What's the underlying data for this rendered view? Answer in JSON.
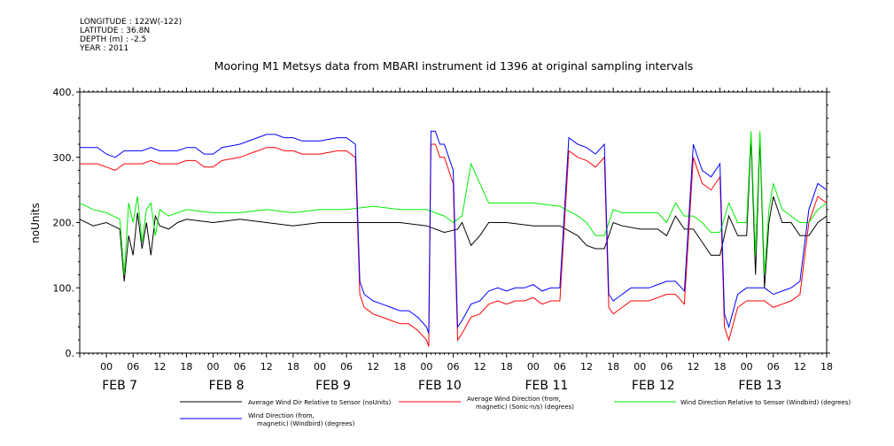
{
  "meta": {
    "longitude": "LONGITUDE : 122W(-122)",
    "latitude": "LATITUDE : 36.8N",
    "depth": "DEPTH (m) : -2.5",
    "year": "YEAR : 2011"
  },
  "chart_data": {
    "type": "line",
    "title": "Mooring M1 Metsys data from MBARI instrument id 1396 at original sampling intervals",
    "ylabel": "noUnits",
    "xlabel": "",
    "ylim": [
      0,
      400
    ],
    "yticks": [
      "0.",
      "100.",
      "200.",
      "300.",
      "400."
    ],
    "ytick_values": [
      0,
      100,
      200,
      300,
      400
    ],
    "xlim_hours": [
      -6,
      162
    ],
    "hour_ticks": [
      "00",
      "06",
      "12",
      "18",
      "00",
      "06",
      "12",
      "18",
      "00",
      "06",
      "12",
      "18",
      "00",
      "06",
      "12",
      "18",
      "00",
      "06",
      "12",
      "18",
      "00",
      "06",
      "12",
      "18",
      "00",
      "06",
      "12",
      "18"
    ],
    "day_labels": [
      "FEB  7",
      "FEB  8",
      "FEB  9",
      "FEB 10",
      "FEB 11",
      "FEB 12",
      "FEB 13"
    ],
    "grid": false,
    "legend_position": "bottom",
    "series": [
      {
        "name": "Average Wind Dir Relative to Sensor (noUnits)",
        "color": "#000000",
        "points": [
          [
            -6,
            205
          ],
          [
            -3,
            195
          ],
          [
            0,
            200
          ],
          [
            3,
            190
          ],
          [
            4,
            110
          ],
          [
            5,
            180
          ],
          [
            6,
            150
          ],
          [
            7,
            215
          ],
          [
            8,
            160
          ],
          [
            9,
            200
          ],
          [
            10,
            150
          ],
          [
            11,
            210
          ],
          [
            12,
            195
          ],
          [
            14,
            190
          ],
          [
            16,
            200
          ],
          [
            18,
            205
          ],
          [
            24,
            200
          ],
          [
            30,
            205
          ],
          [
            36,
            200
          ],
          [
            42,
            195
          ],
          [
            48,
            200
          ],
          [
            54,
            200
          ],
          [
            60,
            200
          ],
          [
            66,
            200
          ],
          [
            72,
            195
          ],
          [
            76,
            185
          ],
          [
            79,
            190
          ],
          [
            80,
            200
          ],
          [
            82,
            165
          ],
          [
            84,
            180
          ],
          [
            86,
            200
          ],
          [
            90,
            200
          ],
          [
            96,
            195
          ],
          [
            102,
            195
          ],
          [
            106,
            180
          ],
          [
            108,
            165
          ],
          [
            110,
            160
          ],
          [
            112,
            160
          ],
          [
            114,
            200
          ],
          [
            116,
            195
          ],
          [
            120,
            190
          ],
          [
            124,
            190
          ],
          [
            126,
            180
          ],
          [
            128,
            210
          ],
          [
            130,
            190
          ],
          [
            132,
            190
          ],
          [
            134,
            170
          ],
          [
            136,
            150
          ],
          [
            138,
            150
          ],
          [
            140,
            210
          ],
          [
            142,
            180
          ],
          [
            144,
            180
          ],
          [
            145,
            330
          ],
          [
            146,
            120
          ],
          [
            147,
            330
          ],
          [
            148,
            100
          ],
          [
            149,
            200
          ],
          [
            150,
            240
          ],
          [
            152,
            200
          ],
          [
            154,
            200
          ],
          [
            156,
            180
          ],
          [
            158,
            180
          ],
          [
            160,
            200
          ],
          [
            162,
            210
          ]
        ]
      },
      {
        "name": "Average Wind Direction (from, magnetic) (Sonic-n/s) (degrees)",
        "color": "#ff0000",
        "points": [
          [
            -6,
            290
          ],
          [
            -2,
            290
          ],
          [
            0,
            285
          ],
          [
            2,
            280
          ],
          [
            4,
            290
          ],
          [
            6,
            290
          ],
          [
            8,
            290
          ],
          [
            10,
            295
          ],
          [
            12,
            290
          ],
          [
            14,
            290
          ],
          [
            16,
            290
          ],
          [
            18,
            295
          ],
          [
            20,
            295
          ],
          [
            22,
            285
          ],
          [
            24,
            285
          ],
          [
            26,
            295
          ],
          [
            30,
            300
          ],
          [
            34,
            310
          ],
          [
            36,
            315
          ],
          [
            38,
            315
          ],
          [
            40,
            310
          ],
          [
            42,
            310
          ],
          [
            44,
            305
          ],
          [
            48,
            305
          ],
          [
            52,
            310
          ],
          [
            54,
            310
          ],
          [
            56,
            300
          ],
          [
            57,
            90
          ],
          [
            58,
            70
          ],
          [
            60,
            60
          ],
          [
            62,
            55
          ],
          [
            64,
            50
          ],
          [
            66,
            45
          ],
          [
            68,
            45
          ],
          [
            70,
            35
          ],
          [
            72,
            20
          ],
          [
            72.5,
            10
          ],
          [
            73,
            320
          ],
          [
            74,
            320
          ],
          [
            75,
            300
          ],
          [
            76,
            300
          ],
          [
            77,
            280
          ],
          [
            78,
            260
          ],
          [
            79,
            20
          ],
          [
            80,
            30
          ],
          [
            82,
            55
          ],
          [
            84,
            60
          ],
          [
            86,
            75
          ],
          [
            88,
            80
          ],
          [
            90,
            75
          ],
          [
            92,
            80
          ],
          [
            94,
            80
          ],
          [
            96,
            85
          ],
          [
            98,
            75
          ],
          [
            100,
            80
          ],
          [
            102,
            80
          ],
          [
            104,
            310
          ],
          [
            106,
            300
          ],
          [
            108,
            295
          ],
          [
            110,
            285
          ],
          [
            112,
            300
          ],
          [
            113,
            70
          ],
          [
            114,
            60
          ],
          [
            116,
            70
          ],
          [
            118,
            80
          ],
          [
            120,
            80
          ],
          [
            122,
            80
          ],
          [
            124,
            85
          ],
          [
            126,
            90
          ],
          [
            128,
            90
          ],
          [
            130,
            75
          ],
          [
            132,
            300
          ],
          [
            134,
            260
          ],
          [
            136,
            250
          ],
          [
            138,
            270
          ],
          [
            139,
            40
          ],
          [
            140,
            20
          ],
          [
            142,
            70
          ],
          [
            144,
            80
          ],
          [
            146,
            80
          ],
          [
            148,
            80
          ],
          [
            150,
            70
          ],
          [
            152,
            75
          ],
          [
            154,
            80
          ],
          [
            156,
            90
          ],
          [
            158,
            200
          ],
          [
            160,
            240
          ],
          [
            162,
            230
          ]
        ]
      },
      {
        "name": "Wind Direction Relative to Sensor (Windbird) (degrees)",
        "color": "#00ee00",
        "points": [
          [
            -6,
            230
          ],
          [
            -3,
            220
          ],
          [
            0,
            215
          ],
          [
            3,
            205
          ],
          [
            4,
            120
          ],
          [
            5,
            230
          ],
          [
            6,
            200
          ],
          [
            7,
            240
          ],
          [
            8,
            170
          ],
          [
            9,
            220
          ],
          [
            10,
            230
          ],
          [
            11,
            180
          ],
          [
            12,
            220
          ],
          [
            14,
            210
          ],
          [
            16,
            215
          ],
          [
            18,
            220
          ],
          [
            24,
            215
          ],
          [
            30,
            215
          ],
          [
            36,
            220
          ],
          [
            42,
            215
          ],
          [
            48,
            220
          ],
          [
            54,
            220
          ],
          [
            60,
            225
          ],
          [
            66,
            220
          ],
          [
            72,
            220
          ],
          [
            76,
            210
          ],
          [
            78,
            200
          ],
          [
            80,
            210
          ],
          [
            82,
            290
          ],
          [
            84,
            260
          ],
          [
            86,
            230
          ],
          [
            90,
            230
          ],
          [
            96,
            230
          ],
          [
            102,
            225
          ],
          [
            106,
            210
          ],
          [
            108,
            200
          ],
          [
            110,
            180
          ],
          [
            112,
            180
          ],
          [
            114,
            220
          ],
          [
            116,
            215
          ],
          [
            120,
            215
          ],
          [
            124,
            215
          ],
          [
            126,
            200
          ],
          [
            128,
            230
          ],
          [
            130,
            210
          ],
          [
            132,
            210
          ],
          [
            134,
            200
          ],
          [
            136,
            185
          ],
          [
            138,
            185
          ],
          [
            140,
            230
          ],
          [
            142,
            200
          ],
          [
            144,
            200
          ],
          [
            145,
            340
          ],
          [
            146,
            150
          ],
          [
            147,
            340
          ],
          [
            148,
            120
          ],
          [
            149,
            220
          ],
          [
            150,
            260
          ],
          [
            152,
            220
          ],
          [
            154,
            210
          ],
          [
            156,
            200
          ],
          [
            158,
            200
          ],
          [
            160,
            220
          ],
          [
            162,
            230
          ]
        ]
      },
      {
        "name": "Wind Direction (from, magnetic) (Windbird) (degrees)",
        "color": "#0000ff",
        "points": [
          [
            -6,
            315
          ],
          [
            -2,
            315
          ],
          [
            0,
            305
          ],
          [
            2,
            300
          ],
          [
            4,
            310
          ],
          [
            6,
            310
          ],
          [
            8,
            310
          ],
          [
            10,
            315
          ],
          [
            12,
            310
          ],
          [
            14,
            310
          ],
          [
            16,
            310
          ],
          [
            18,
            315
          ],
          [
            20,
            315
          ],
          [
            22,
            305
          ],
          [
            24,
            305
          ],
          [
            26,
            315
          ],
          [
            30,
            320
          ],
          [
            34,
            330
          ],
          [
            36,
            335
          ],
          [
            38,
            335
          ],
          [
            40,
            330
          ],
          [
            42,
            330
          ],
          [
            44,
            325
          ],
          [
            48,
            325
          ],
          [
            52,
            330
          ],
          [
            54,
            330
          ],
          [
            56,
            320
          ],
          [
            57,
            110
          ],
          [
            58,
            90
          ],
          [
            60,
            80
          ],
          [
            62,
            75
          ],
          [
            64,
            70
          ],
          [
            66,
            65
          ],
          [
            68,
            65
          ],
          [
            70,
            55
          ],
          [
            72,
            40
          ],
          [
            72.5,
            30
          ],
          [
            73,
            340
          ],
          [
            74,
            340
          ],
          [
            75,
            320
          ],
          [
            76,
            320
          ],
          [
            77,
            300
          ],
          [
            78,
            280
          ],
          [
            79,
            40
          ],
          [
            80,
            50
          ],
          [
            82,
            75
          ],
          [
            84,
            80
          ],
          [
            86,
            95
          ],
          [
            88,
            100
          ],
          [
            90,
            95
          ],
          [
            92,
            100
          ],
          [
            94,
            100
          ],
          [
            96,
            105
          ],
          [
            98,
            95
          ],
          [
            100,
            100
          ],
          [
            102,
            100
          ],
          [
            104,
            330
          ],
          [
            106,
            320
          ],
          [
            108,
            315
          ],
          [
            110,
            305
          ],
          [
            112,
            320
          ],
          [
            113,
            90
          ],
          [
            114,
            80
          ],
          [
            116,
            90
          ],
          [
            118,
            100
          ],
          [
            120,
            100
          ],
          [
            122,
            100
          ],
          [
            124,
            105
          ],
          [
            126,
            110
          ],
          [
            128,
            110
          ],
          [
            130,
            95
          ],
          [
            132,
            320
          ],
          [
            134,
            280
          ],
          [
            136,
            270
          ],
          [
            138,
            290
          ],
          [
            139,
            60
          ],
          [
            140,
            40
          ],
          [
            142,
            90
          ],
          [
            144,
            100
          ],
          [
            146,
            100
          ],
          [
            148,
            100
          ],
          [
            150,
            90
          ],
          [
            152,
            95
          ],
          [
            154,
            100
          ],
          [
            156,
            110
          ],
          [
            158,
            220
          ],
          [
            160,
            260
          ],
          [
            162,
            250
          ]
        ]
      }
    ],
    "legend": [
      {
        "text": "Average Wind Dir Relative to Sensor (noUnits)",
        "color": "#000000"
      },
      {
        "text": "Average Wind Direction (from,\nmagnetic) (Sonic-n/s) (degrees)",
        "color": "#ff0000"
      },
      {
        "text": "Wind Direction Relative to Sensor (Windbird) (degrees)",
        "color": "#00ee00"
      },
      {
        "text": "Wind Direction (from,\nmagnetic) (Windbird) (degrees)",
        "color": "#0000ff"
      }
    ]
  }
}
